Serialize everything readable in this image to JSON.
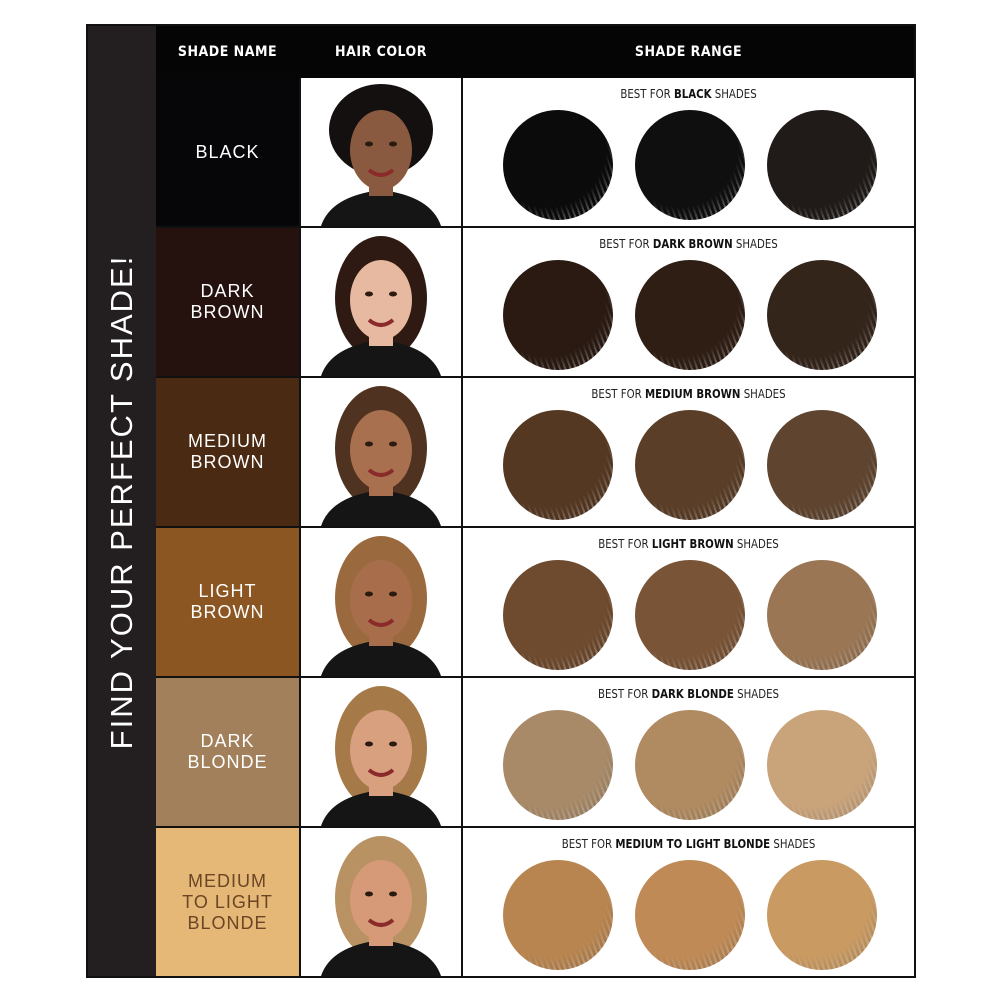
{
  "title": "FIND YOUR PERFECT SHADE!",
  "headers": {
    "shade_name": "SHADE NAME",
    "hair_color": "HAIR COLOR",
    "shade_range": "SHADE RANGE"
  },
  "caption_prefix": "BEST FOR",
  "caption_suffix": "SHADES",
  "rows": [
    {
      "name": "BLACK",
      "range": "BLACK",
      "bg": "#060608",
      "text": "#ffffff",
      "hair": "#141010",
      "skin": "#8a5a40",
      "swatches": [
        "#0b0b0b",
        "#0f0f0f",
        "#201b18"
      ]
    },
    {
      "name": "DARK\nBROWN",
      "range": "DARK BROWN",
      "bg": "#25120f",
      "text": "#ffffff",
      "hair": "#2e1a12",
      "skin": "#e6b9a0",
      "swatches": [
        "#2a1a12",
        "#2f1e14",
        "#34251b"
      ]
    },
    {
      "name": "MEDIUM\nBROWN",
      "range": "MEDIUM BROWN",
      "bg": "#4a2a12",
      "text": "#ffffff",
      "hair": "#4f3220",
      "skin": "#a8704e",
      "swatches": [
        "#553822",
        "#5a3e27",
        "#5f4530"
      ]
    },
    {
      "name": "LIGHT\nBROWN",
      "range": "LIGHT BROWN",
      "bg": "#8b5622",
      "text": "#ffffff",
      "hair": "#9a6a3e",
      "skin": "#a86e4c",
      "swatches": [
        "#6e4a2e",
        "#7a5436",
        "#9a7654"
      ]
    },
    {
      "name": "DARK\nBLONDE",
      "range": "DARK BLONDE",
      "bg": "#a3805c",
      "text": "#ffffff",
      "hair": "#a67a48",
      "skin": "#d9a080",
      "swatches": [
        "#a88a68",
        "#b08a60",
        "#c9a37a"
      ]
    },
    {
      "name": "MEDIUM\nTO LIGHT\nBLONDE",
      "range": "MEDIUM TO LIGHT BLONDE",
      "bg": "#e5b878",
      "text": "#6b4524",
      "hair": "#b89262",
      "skin": "#d69a78",
      "swatches": [
        "#b88550",
        "#bf8a55",
        "#c99a62"
      ]
    }
  ]
}
